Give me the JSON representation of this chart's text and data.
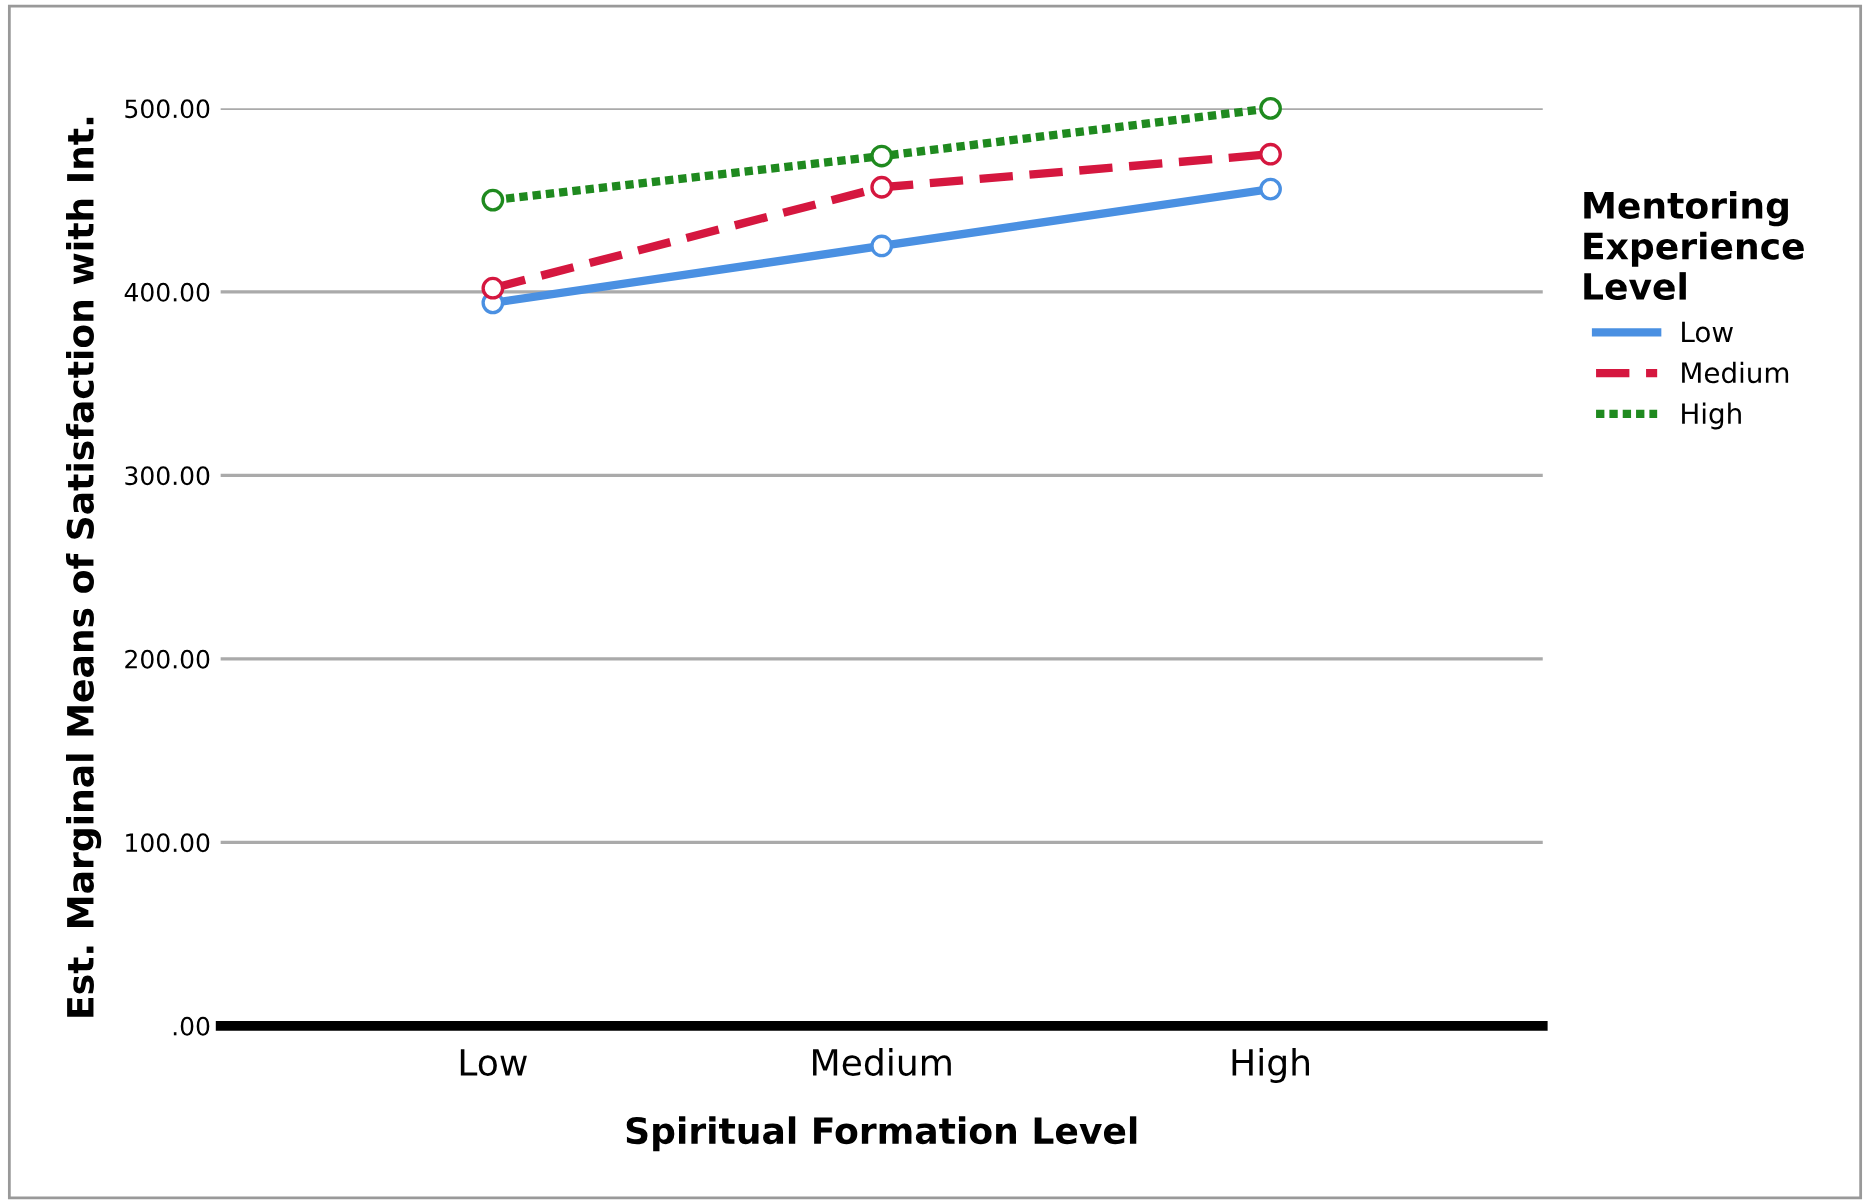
{
  "chart_data": {
    "type": "line",
    "xlabel": "Spiritual Formation Level",
    "ylabel": "Est. Marginal Means of Satisfaction with Int.",
    "legend_title": "Mentoring\nExperience\nLevel",
    "categories": [
      "Low",
      "Medium",
      "High"
    ],
    "series": [
      {
        "name": "Low",
        "color": "#4a90e2",
        "values": [
          394,
          425,
          456
        ],
        "line_style": "solid"
      },
      {
        "name": "Medium",
        "color": "#d5173f",
        "values": [
          402,
          457,
          475
        ],
        "line_style": "dashed"
      },
      {
        "name": "High",
        "color": "#1f8a1f",
        "values": [
          450,
          474,
          500
        ],
        "line_style": "dotted"
      }
    ],
    "ylim": [
      0,
      500
    ],
    "yticks": [
      {
        "value": 0,
        "label": ".00"
      },
      {
        "value": 100,
        "label": "100.00"
      },
      {
        "value": 200,
        "label": "200.00"
      },
      {
        "value": 300,
        "label": "300.00"
      },
      {
        "value": 400,
        "label": "400.00"
      },
      {
        "value": 500,
        "label": "500.00"
      }
    ],
    "grid": "y",
    "legend": "right",
    "marker": "circle"
  }
}
